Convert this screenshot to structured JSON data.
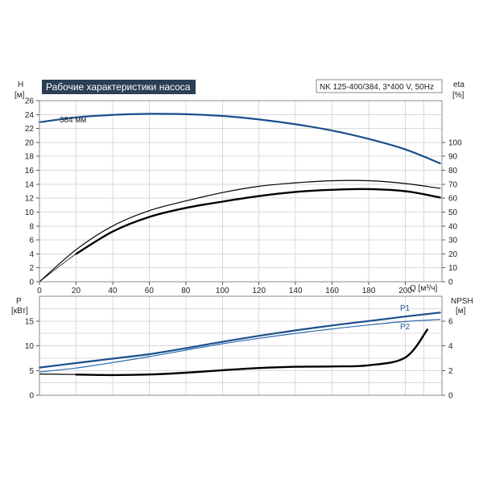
{
  "colors": {
    "blue": "#1a4e8c",
    "blue_light": "#2f6cb0",
    "black": "#000000",
    "title_bg": "#2b3f57"
  },
  "chart_data": [
    {
      "type": "line",
      "title": "Рабочие характеристики насоса",
      "info": "NK 125-400/384, 3*400 V, 50Hz",
      "annotation": "384 мм",
      "xlabel": "Q [м³/ч]",
      "ylabel_left": [
        "H",
        "[м]"
      ],
      "ylabel_right": [
        "eta",
        "[%]"
      ],
      "xlim": [
        0,
        220
      ],
      "ylim_left": [
        0,
        26
      ],
      "ylim_right": [
        0,
        130
      ],
      "xticks": [
        0,
        20,
        40,
        60,
        80,
        100,
        120,
        140,
        160,
        180,
        200
      ],
      "yticks_left": [
        0,
        2,
        4,
        6,
        8,
        10,
        12,
        14,
        16,
        18,
        20,
        22,
        24,
        26
      ],
      "yticks_right": [
        0,
        10,
        20,
        30,
        40,
        50,
        60,
        70,
        80,
        90,
        100
      ],
      "series": [
        {
          "axis": "left",
          "color": "blue",
          "width": 2.2,
          "x": [
            0,
            20,
            40,
            60,
            80,
            100,
            120,
            140,
            160,
            180,
            200,
            219
          ],
          "y": [
            22.9,
            23.6,
            23.95,
            24.1,
            24.05,
            23.8,
            23.3,
            22.6,
            21.7,
            20.5,
            19.0,
            17.0
          ]
        },
        {
          "axis": "right",
          "color": "black",
          "width": 1.2,
          "x": [
            0,
            20,
            40,
            60,
            80,
            100,
            120,
            140,
            160,
            180,
            200,
            219
          ],
          "y": [
            0,
            23,
            40,
            51,
            58,
            64,
            68.5,
            71,
            72.5,
            72.5,
            70.5,
            67
          ]
        },
        {
          "axis": "right",
          "color": "black",
          "width": 2.4,
          "x": [
            20,
            40,
            60,
            80,
            100,
            120,
            140,
            160,
            180,
            200,
            219
          ],
          "y": [
            20,
            36,
            46.5,
            53,
            57.5,
            61.5,
            64.5,
            66,
            66.5,
            65,
            60.5
          ]
        },
        {
          "axis": "right",
          "color": "black",
          "width": 0.8,
          "x": [
            0,
            20,
            40
          ],
          "y": [
            0,
            20,
            36
          ]
        }
      ]
    },
    {
      "type": "line",
      "xlim": [
        0,
        220
      ],
      "ylabel_left": [
        "P",
        "[кВт]"
      ],
      "ylabel_right": [
        "NPSH",
        "[м]"
      ],
      "ylim_left": [
        0,
        20
      ],
      "ylim_right": [
        0,
        8
      ],
      "yticks_left": [
        0,
        5,
        10,
        15
      ],
      "yticks_right": [
        0,
        2,
        4,
        6
      ],
      "series": [
        {
          "name": "P1",
          "axis": "left",
          "color": "blue",
          "width": 2.2,
          "x": [
            0,
            20,
            40,
            60,
            80,
            100,
            120,
            140,
            160,
            180,
            200,
            219
          ],
          "y": [
            5.6,
            6.5,
            7.4,
            8.3,
            9.5,
            10.8,
            12.0,
            13.1,
            14.1,
            15.0,
            15.9,
            16.7
          ]
        },
        {
          "name": "P2",
          "axis": "left",
          "color": "blue_light",
          "width": 1.2,
          "x": [
            0,
            20,
            40,
            60,
            80,
            100,
            120,
            140,
            160,
            180,
            200,
            219
          ],
          "y": [
            4.7,
            5.5,
            6.6,
            7.8,
            9.1,
            10.4,
            11.5,
            12.5,
            13.4,
            14.2,
            14.9,
            15.3
          ]
        },
        {
          "axis": "right",
          "color": "black",
          "width": 1.2,
          "x": [
            0,
            20
          ],
          "y": [
            1.72,
            1.68
          ]
        },
        {
          "axis": "right",
          "color": "black",
          "width": 2.4,
          "x": [
            20,
            40,
            60,
            80,
            100,
            120,
            140,
            160,
            180,
            200,
            212
          ],
          "y": [
            1.67,
            1.63,
            1.68,
            1.82,
            2.02,
            2.2,
            2.3,
            2.33,
            2.42,
            3.05,
            5.3
          ]
        }
      ]
    }
  ]
}
